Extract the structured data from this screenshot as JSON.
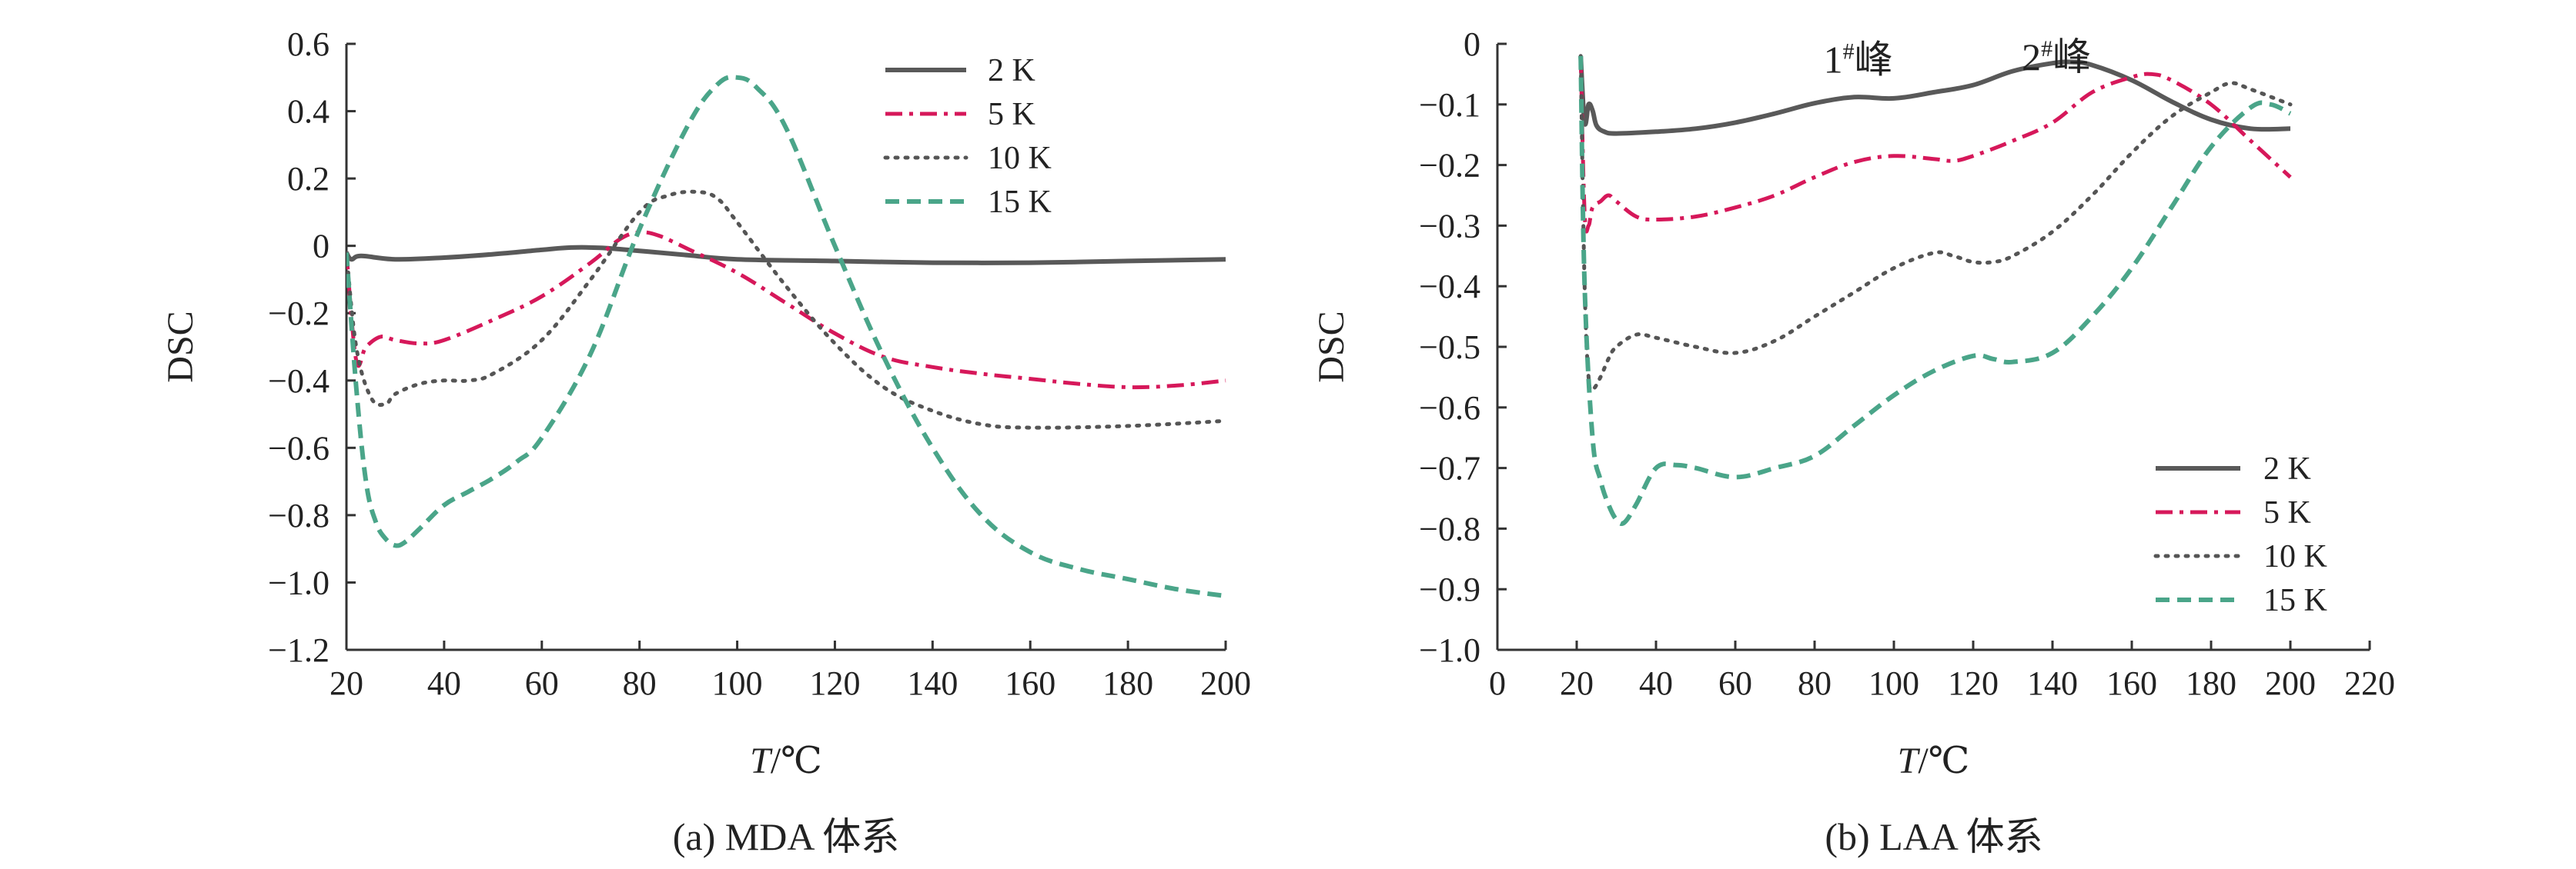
{
  "chart_data": [
    {
      "type": "line",
      "caption": "(a) MDA 体系",
      "xlabel_italic": "T",
      "xlabel_unit": "/℃",
      "ylabel": "DSC",
      "xlim": [
        20,
        200
      ],
      "ylim": [
        -1.2,
        0.6
      ],
      "xticks": [
        20,
        40,
        60,
        80,
        100,
        120,
        140,
        160,
        180,
        200
      ],
      "yticks": [
        0.6,
        0.4,
        0.2,
        0,
        -0.2,
        -0.4,
        -0.6,
        -0.8,
        -1.0,
        -1.2
      ],
      "ytick_labels": [
        "0.6",
        "0.4",
        "0.2",
        "0",
        "−0.2",
        "−0.4",
        "−0.6",
        "−0.8",
        "−1.0",
        "−1.2"
      ],
      "legend_position": "top-right",
      "series": [
        {
          "name": "2 K",
          "color": "#595959",
          "style": "solid",
          "x": [
            20,
            21,
            23,
            30,
            40,
            50,
            60,
            66,
            72,
            80,
            90,
            100,
            120,
            140,
            160,
            180,
            200
          ],
          "y": [
            -0.02,
            -0.04,
            -0.03,
            -0.04,
            -0.035,
            -0.025,
            -0.012,
            -0.005,
            -0.006,
            -0.015,
            -0.028,
            -0.04,
            -0.045,
            -0.05,
            -0.05,
            -0.045,
            -0.04
          ]
        },
        {
          "name": "5 K",
          "color": "#d6185a",
          "style": "dashdot",
          "x": [
            20,
            22,
            24,
            27,
            30,
            35,
            40,
            50,
            60,
            70,
            76,
            80,
            84,
            90,
            100,
            110,
            120,
            130,
            140,
            150,
            160,
            170,
            180,
            190,
            200
          ],
          "y": [
            -0.02,
            -0.34,
            -0.3,
            -0.27,
            -0.28,
            -0.29,
            -0.28,
            -0.22,
            -0.15,
            -0.05,
            0.02,
            0.04,
            0.03,
            -0.01,
            -0.08,
            -0.17,
            -0.26,
            -0.33,
            -0.36,
            -0.38,
            -0.395,
            -0.41,
            -0.42,
            -0.415,
            -0.4
          ]
        },
        {
          "name": "10 K",
          "color": "#555555",
          "style": "dotted",
          "x": [
            20,
            22,
            25,
            28,
            30,
            35,
            40,
            45,
            50,
            60,
            70,
            80,
            86,
            92,
            96,
            100,
            110,
            120,
            130,
            140,
            150,
            160,
            180,
            200
          ],
          "y": [
            -0.02,
            -0.3,
            -0.45,
            -0.47,
            -0.44,
            -0.41,
            -0.4,
            -0.4,
            -0.38,
            -0.28,
            -0.1,
            0.1,
            0.15,
            0.16,
            0.14,
            0.07,
            -0.12,
            -0.29,
            -0.42,
            -0.49,
            -0.53,
            -0.54,
            -0.535,
            -0.52
          ]
        },
        {
          "name": "15 K",
          "color": "#4aa589",
          "style": "dashed",
          "x": [
            20,
            22,
            24,
            26,
            28,
            30,
            32,
            35,
            40,
            45,
            50,
            55,
            60,
            70,
            80,
            90,
            96,
            100,
            104,
            110,
            120,
            130,
            140,
            150,
            160,
            170,
            180,
            190,
            200
          ],
          "y": [
            -0.02,
            -0.42,
            -0.7,
            -0.82,
            -0.87,
            -0.89,
            -0.88,
            -0.84,
            -0.77,
            -0.73,
            -0.69,
            -0.64,
            -0.57,
            -0.32,
            0.05,
            0.36,
            0.48,
            0.5,
            0.47,
            0.35,
            0.0,
            -0.33,
            -0.6,
            -0.8,
            -0.91,
            -0.96,
            -0.99,
            -1.02,
            -1.04
          ]
        }
      ]
    },
    {
      "type": "line",
      "caption": "(b) LAA 体系",
      "xlabel_italic": "T",
      "xlabel_unit": "/℃",
      "ylabel": "DSC",
      "xlim": [
        0,
        220
      ],
      "ylim": [
        -1.0,
        0
      ],
      "xticks": [
        0,
        20,
        40,
        60,
        80,
        100,
        120,
        140,
        160,
        180,
        200,
        220
      ],
      "yticks": [
        0,
        -0.1,
        -0.2,
        -0.3,
        -0.4,
        -0.5,
        -0.6,
        -0.7,
        -0.8,
        -0.9,
        -1.0
      ],
      "ytick_labels": [
        "0",
        "−0.1",
        "−0.2",
        "−0.3",
        "−0.4",
        "−0.5",
        "−0.6",
        "−0.7",
        "−0.8",
        "−0.9",
        "−1.0"
      ],
      "legend_position": "bottom-right",
      "annotations": [
        {
          "base": "1",
          "sup": "#",
          "suffix": "峰",
          "x": 91,
          "y": -0.025
        },
        {
          "base": "2",
          "sup": "#",
          "suffix": "峰",
          "x": 141,
          "y": -0.02
        }
      ],
      "series": [
        {
          "name": "2 K",
          "color": "#595959",
          "style": "solid",
          "x": [
            21,
            22,
            23,
            24,
            25,
            27,
            30,
            40,
            50,
            60,
            70,
            80,
            90,
            100,
            110,
            120,
            130,
            140,
            145,
            150,
            160,
            170,
            180,
            190,
            200
          ],
          "y": [
            -0.02,
            -0.13,
            -0.1,
            -0.11,
            -0.135,
            -0.145,
            -0.148,
            -0.145,
            -0.14,
            -0.13,
            -0.115,
            -0.098,
            -0.088,
            -0.09,
            -0.08,
            -0.068,
            -0.045,
            -0.032,
            -0.03,
            -0.035,
            -0.06,
            -0.095,
            -0.125,
            -0.14,
            -0.14
          ]
        },
        {
          "name": "5 K",
          "color": "#d6185a",
          "style": "dashdot",
          "x": [
            21,
            22,
            23,
            24,
            26,
            28,
            30,
            35,
            40,
            50,
            60,
            70,
            80,
            90,
            100,
            110,
            115,
            120,
            130,
            140,
            150,
            160,
            165,
            170,
            180,
            190,
            200
          ],
          "y": [
            -0.02,
            -0.28,
            -0.3,
            -0.27,
            -0.26,
            -0.25,
            -0.26,
            -0.285,
            -0.29,
            -0.285,
            -0.27,
            -0.25,
            -0.22,
            -0.195,
            -0.185,
            -0.19,
            -0.193,
            -0.185,
            -0.16,
            -0.13,
            -0.08,
            -0.055,
            -0.05,
            -0.06,
            -0.1,
            -0.16,
            -0.22
          ]
        },
        {
          "name": "10 K",
          "color": "#555555",
          "style": "dotted",
          "x": [
            21,
            22,
            23,
            24,
            26,
            28,
            30,
            35,
            40,
            50,
            60,
            70,
            80,
            90,
            100,
            110,
            115,
            120,
            125,
            130,
            140,
            150,
            160,
            170,
            180,
            185,
            190,
            200
          ],
          "y": [
            -0.02,
            -0.4,
            -0.55,
            -0.57,
            -0.55,
            -0.52,
            -0.5,
            -0.48,
            -0.485,
            -0.5,
            -0.51,
            -0.49,
            -0.45,
            -0.41,
            -0.37,
            -0.345,
            -0.35,
            -0.36,
            -0.36,
            -0.35,
            -0.31,
            -0.25,
            -0.18,
            -0.12,
            -0.08,
            -0.065,
            -0.075,
            -0.1
          ]
        },
        {
          "name": "15 K",
          "color": "#4aa589",
          "style": "dashed",
          "x": [
            21,
            22,
            24,
            26,
            28,
            30,
            32,
            35,
            40,
            45,
            50,
            60,
            70,
            80,
            90,
            100,
            110,
            120,
            125,
            130,
            140,
            150,
            160,
            170,
            180,
            190,
            195,
            200
          ],
          "y": [
            -0.02,
            -0.4,
            -0.65,
            -0.72,
            -0.76,
            -0.785,
            -0.79,
            -0.76,
            -0.7,
            -0.695,
            -0.7,
            -0.715,
            -0.7,
            -0.68,
            -0.63,
            -0.58,
            -0.54,
            -0.515,
            -0.52,
            -0.525,
            -0.51,
            -0.45,
            -0.37,
            -0.27,
            -0.17,
            -0.105,
            -0.1,
            -0.115
          ]
        }
      ]
    }
  ]
}
